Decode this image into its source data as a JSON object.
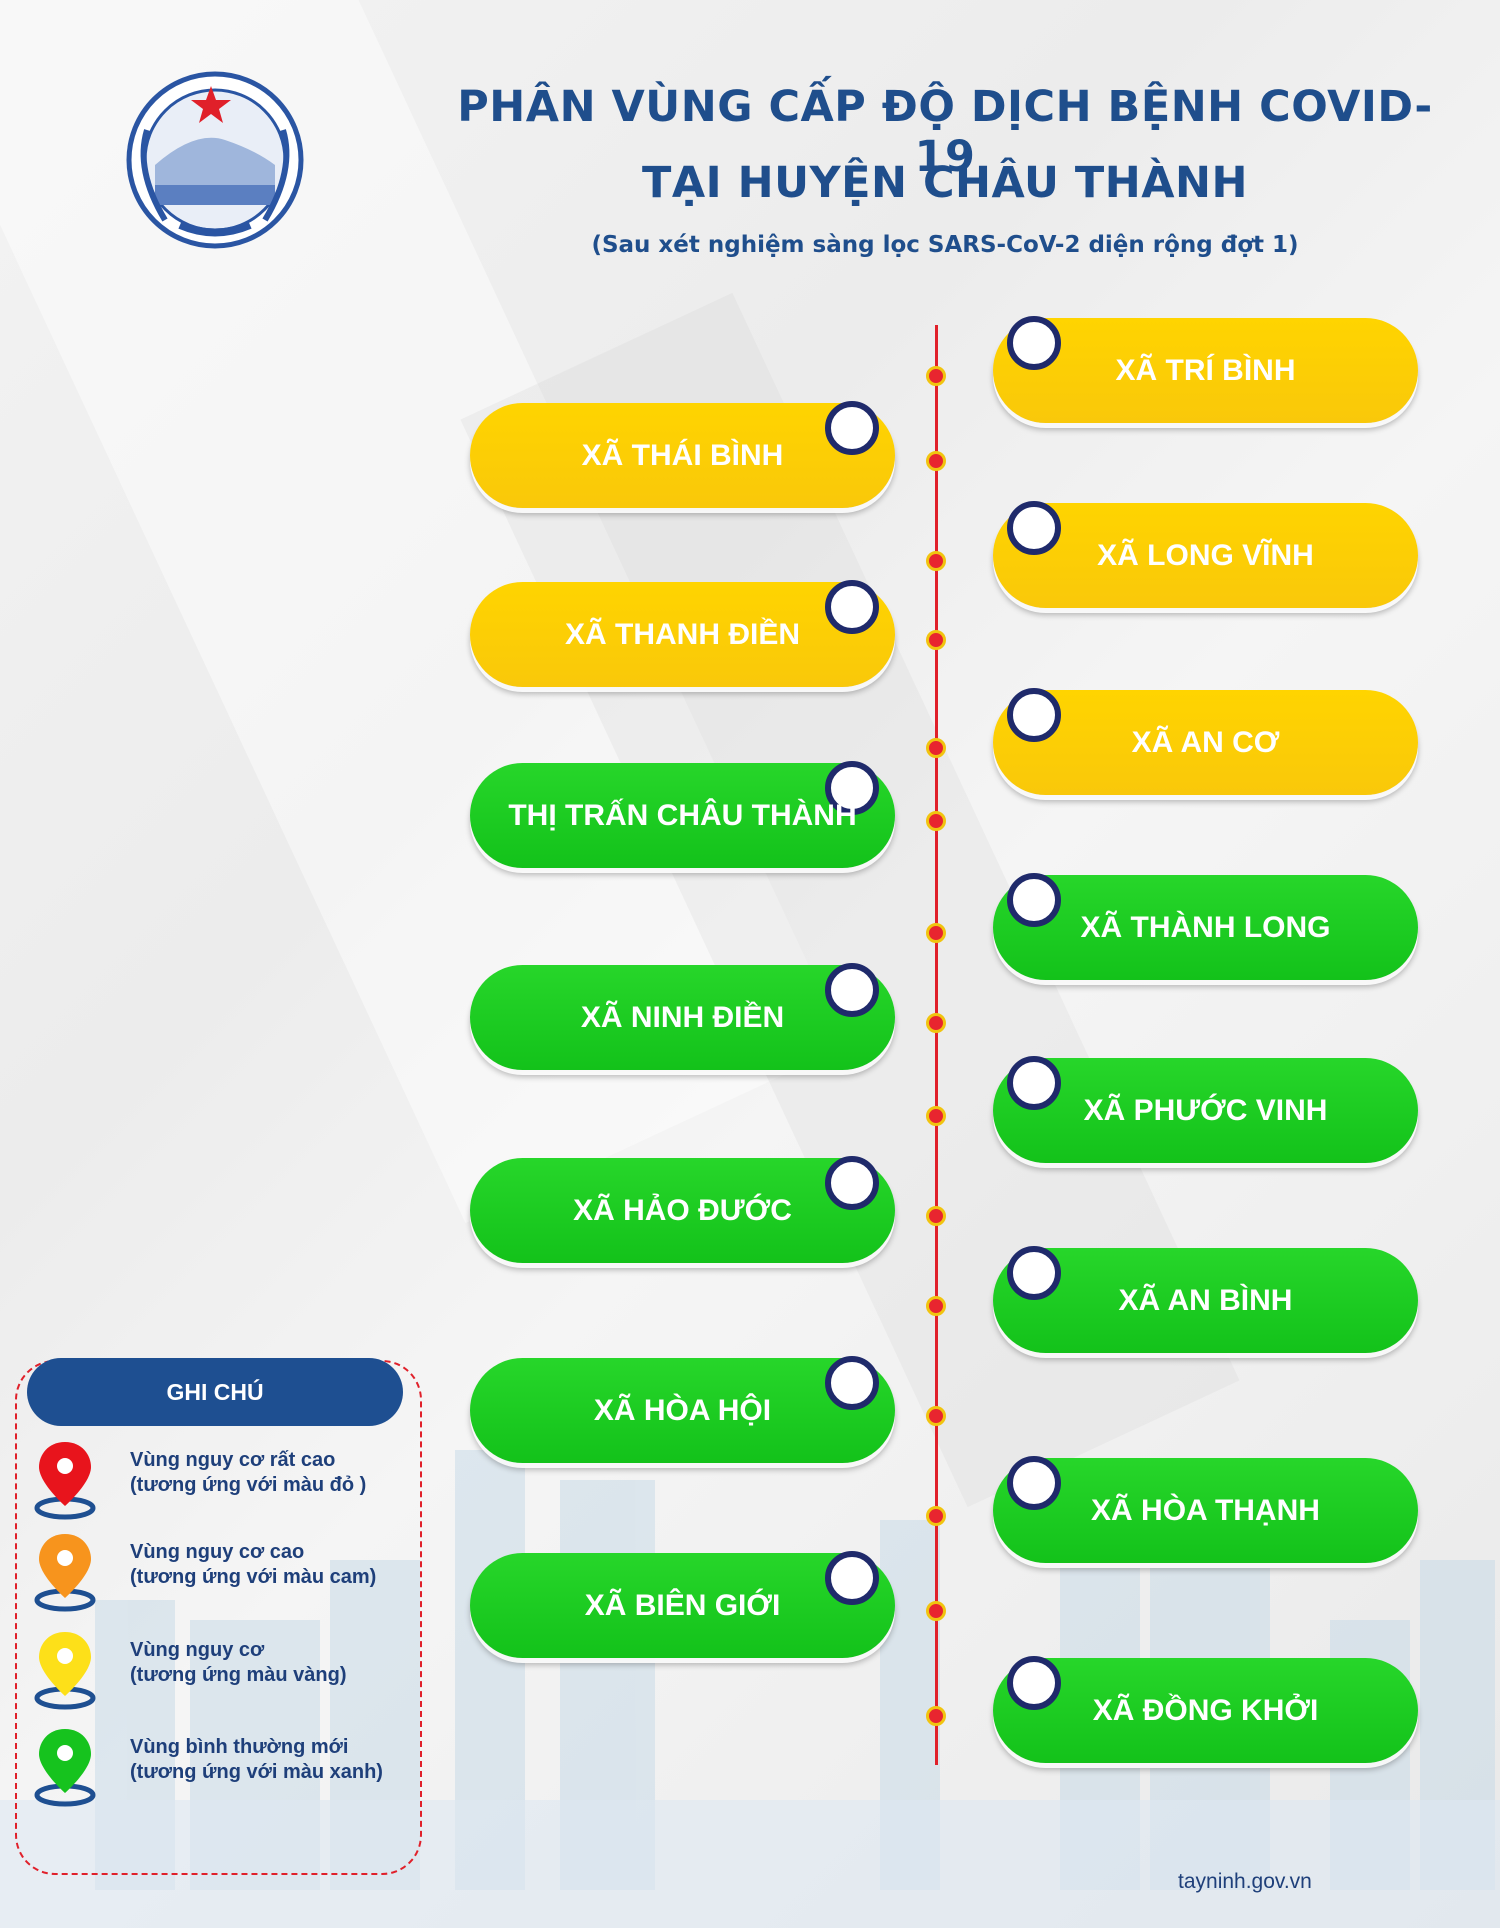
{
  "header": {
    "title_line1": "PHÂN VÙNG CẤP ĐỘ DỊCH BỆNH COVID-19",
    "title_line2": "TẠI HUYỆN CHÂU THÀNH",
    "subtitle": "(Sau xét nghiệm sàng lọc SARS-CoV-2 diện rộng đợt 1)"
  },
  "communes": [
    {
      "name": "XÃ TRÍ BÌNH",
      "zone": "yellow",
      "side": "right"
    },
    {
      "name": "XÃ THÁI BÌNH",
      "zone": "yellow",
      "side": "left"
    },
    {
      "name": "XÃ LONG VĨNH",
      "zone": "yellow",
      "side": "right"
    },
    {
      "name": "XÃ THANH ĐIỀN",
      "zone": "yellow",
      "side": "left"
    },
    {
      "name": "XÃ AN CƠ",
      "zone": "yellow",
      "side": "right"
    },
    {
      "name": "THỊ TRẤN CHÂU THÀNH",
      "zone": "green",
      "side": "left"
    },
    {
      "name": "XÃ THÀNH LONG",
      "zone": "green",
      "side": "right"
    },
    {
      "name": "XÃ NINH ĐIỀN",
      "zone": "green",
      "side": "left"
    },
    {
      "name": "XÃ PHƯỚC VINH",
      "zone": "green",
      "side": "right"
    },
    {
      "name": "XÃ HẢO ĐƯỚC",
      "zone": "green",
      "side": "left"
    },
    {
      "name": "XÃ AN BÌNH",
      "zone": "green",
      "side": "right"
    },
    {
      "name": "XÃ HÒA HỘI",
      "zone": "green",
      "side": "left"
    },
    {
      "name": "XÃ HÒA THẠNH",
      "zone": "green",
      "side": "right"
    },
    {
      "name": "XÃ BIÊN GIỚI",
      "zone": "green",
      "side": "left"
    },
    {
      "name": "XÃ ĐỒNG KHỞI",
      "zone": "green",
      "side": "right"
    }
  ],
  "legend": {
    "heading": "GHI CHÚ",
    "items": [
      {
        "line1": "Vùng nguy cơ rất cao",
        "line2": "(tương ứng với màu đỏ )",
        "color": "#e8141c",
        "icon": "location-pin-icon"
      },
      {
        "line1": "Vùng nguy cơ cao",
        "line2": "(tương ứng với màu cam)",
        "color": "#f7941d",
        "icon": "location-pin-icon"
      },
      {
        "line1": "Vùng nguy cơ",
        "line2": "(tương ứng màu vàng)",
        "color": "#fde019",
        "icon": "location-pin-icon"
      },
      {
        "line1": "Vùng bình thường mới",
        "line2": "(tương ứng với màu xanh)",
        "color": "#16c31e",
        "icon": "location-pin-icon"
      }
    ]
  },
  "footer": {
    "source": "tayninh.gov.vn"
  },
  "colors": {
    "title": "#1f4e8c",
    "yellow_zone": "#ffd400",
    "green_zone": "#1bc520",
    "timeline": "#e0202a"
  }
}
